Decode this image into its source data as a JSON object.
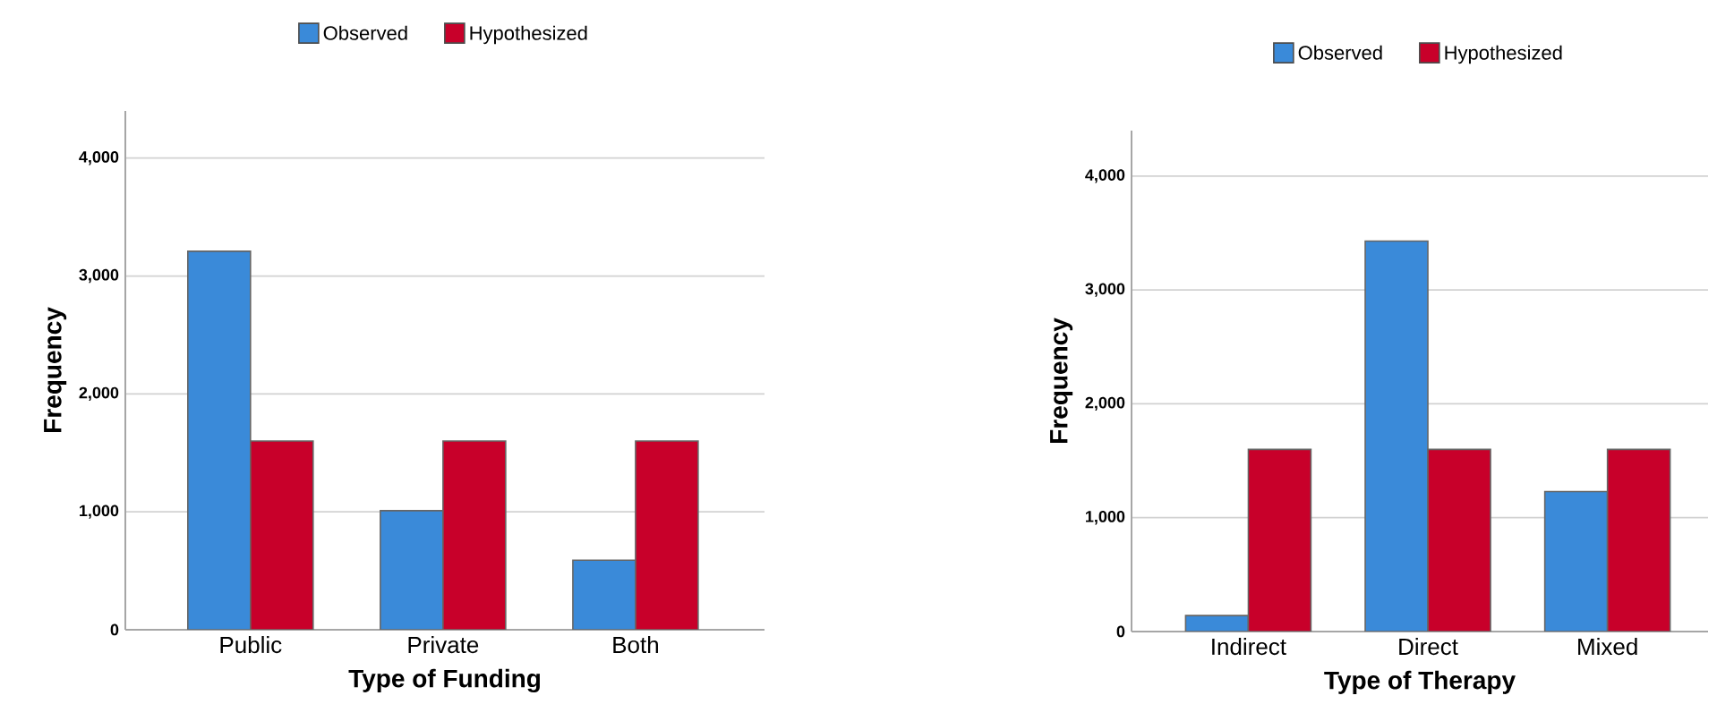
{
  "chart_data": [
    {
      "type": "bar",
      "categories": [
        "Public",
        "Private",
        "Both"
      ],
      "xlabel": "Type of Funding",
      "ylabel": "Frequency",
      "ylim": [
        0,
        4400
      ],
      "yticks": [
        0,
        {
          "value": 1000,
          "label": "1,000"
        },
        {
          "value": 2000,
          "label": "2,000"
        },
        {
          "value": 3000,
          "label": "3,000"
        },
        {
          "value": 4000,
          "label": "4,000"
        }
      ],
      "grid": "y",
      "legend": "top",
      "series": [
        {
          "name": "Observed",
          "color": "#3a8ad9",
          "values": [
            3210,
            1010,
            590
          ]
        },
        {
          "name": "Hypothesized",
          "color": "#c8002a",
          "values": [
            1600,
            1600,
            1600
          ]
        }
      ]
    },
    {
      "type": "bar",
      "categories": [
        "Indirect",
        "Direct",
        "Mixed"
      ],
      "xlabel": "Type of Therapy",
      "ylabel": "Frequency",
      "ylim": [
        0,
        4400
      ],
      "yticks": [
        0,
        {
          "value": 1000,
          "label": "1,000"
        },
        {
          "value": 2000,
          "label": "2,000"
        },
        {
          "value": 3000,
          "label": "3,000"
        },
        {
          "value": 4000,
          "label": "4,000"
        }
      ],
      "grid": "y",
      "legend": "top",
      "series": [
        {
          "name": "Observed",
          "color": "#3a8ad9",
          "values": [
            140,
            3430,
            1230
          ]
        },
        {
          "name": "Hypothesized",
          "color": "#c8002a",
          "values": [
            1600,
            1600,
            1600
          ]
        }
      ]
    }
  ]
}
